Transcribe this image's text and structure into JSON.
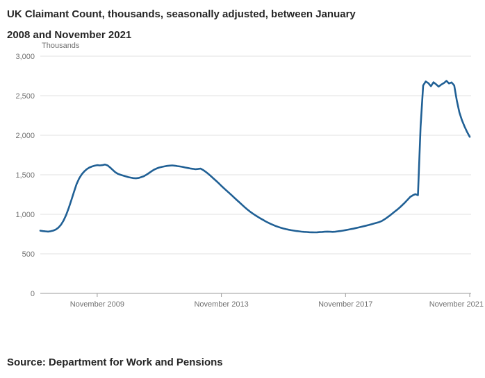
{
  "title_lines": {
    "line1": "UK Claimant Count, thousands, seasonally adjusted, between January",
    "line2": "2008 and November 2021"
  },
  "source": "Source: Department for Work and Pensions",
  "chart_data": {
    "type": "line",
    "title": "UK Claimant Count, thousands, seasonally adjusted, between January 2008 and November 2021",
    "units_label": "Thousands",
    "xlabel": "",
    "ylabel": "Thousands",
    "line_color": "#206095",
    "grid": true,
    "legend": "none",
    "x_unit": "month",
    "x_start": "January 2008",
    "x_end": "November 2021",
    "x_tick_labels": [
      "November 2009",
      "November 2013",
      "November 2017",
      "November 2021"
    ],
    "x_tick_month_indices": [
      22,
      70,
      118,
      166
    ],
    "ylim": [
      0,
      3000
    ],
    "y_ticks": [
      0,
      500,
      1000,
      1500,
      2000,
      2500,
      3000
    ],
    "y_tick_labels": [
      "0",
      "500",
      "1,000",
      "1,500",
      "2,000",
      "2,500",
      "3,000"
    ],
    "series": [
      {
        "name": "UK Claimant Count (thousands, seasonally adjusted)",
        "values": [
          793,
          788,
          784,
          782,
          786,
          794,
          808,
          832,
          868,
          922,
          992,
          1082,
          1180,
          1282,
          1380,
          1452,
          1505,
          1543,
          1572,
          1592,
          1605,
          1615,
          1622,
          1618,
          1622,
          1630,
          1618,
          1592,
          1562,
          1532,
          1512,
          1500,
          1490,
          1480,
          1470,
          1464,
          1458,
          1455,
          1460,
          1470,
          1482,
          1500,
          1522,
          1545,
          1565,
          1580,
          1592,
          1600,
          1606,
          1612,
          1616,
          1618,
          1615,
          1610,
          1605,
          1600,
          1592,
          1586,
          1580,
          1575,
          1570,
          1574,
          1578,
          1560,
          1536,
          1510,
          1482,
          1452,
          1422,
          1392,
          1360,
          1330,
          1300,
          1270,
          1240,
          1210,
          1180,
          1150,
          1120,
          1090,
          1062,
          1036,
          1012,
          990,
          970,
          950,
          932,
          912,
          896,
          880,
          866,
          852,
          840,
          830,
          820,
          812,
          805,
          799,
          794,
          789,
          785,
          781,
          778,
          776,
          774,
          773,
          772,
          773,
          775,
          777,
          780,
          782,
          780,
          778,
          780,
          784,
          789,
          794,
          800,
          806,
          812,
          818,
          826,
          833,
          841,
          849,
          857,
          865,
          874,
          883,
          892,
          902,
          915,
          935,
          958,
          982,
          1008,
          1034,
          1060,
          1088,
          1118,
          1150,
          1185,
          1220,
          1240,
          1255,
          1242,
          2110,
          2630,
          2680,
          2660,
          2620,
          2670,
          2645,
          2615,
          2640,
          2660,
          2688,
          2655,
          2668,
          2630,
          2440,
          2290,
          2190,
          2110,
          2040,
          1980
        ]
      }
    ]
  }
}
